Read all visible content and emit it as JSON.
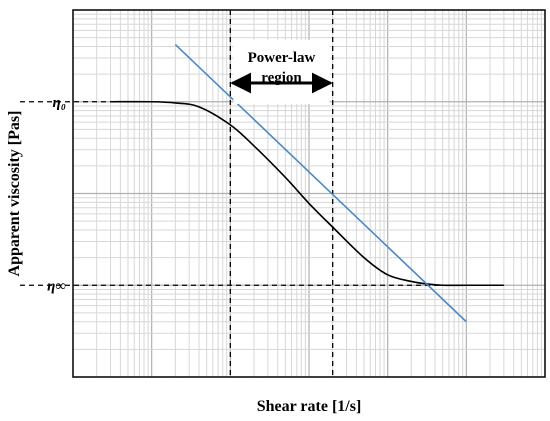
{
  "chart_data": {
    "type": "line",
    "title": "",
    "xlabel": "Shear rate [1/s]",
    "ylabel": "Apparent viscosity [Pas]",
    "x_scale": "log",
    "y_scale": "log",
    "xlim": [
      0.01,
      10000
    ],
    "ylim": [
      0.01,
      100
    ],
    "grid": true,
    "y_tick_labels": [
      {
        "label": "η₀",
        "value": 10
      },
      {
        "label": "η∞",
        "value": 0.1
      }
    ],
    "series": [
      {
        "name": "",
        "color": "#000000",
        "x": [
          0.03,
          0.1,
          0.2,
          0.4,
          1,
          2,
          5,
          10,
          20,
          50,
          100,
          200,
          300,
          500,
          1000,
          2000,
          3000
        ],
        "y": [
          10,
          10,
          9.7,
          8.8,
          5.6,
          3.3,
          1.5,
          0.78,
          0.43,
          0.2,
          0.13,
          0.11,
          0.104,
          0.1,
          0.1,
          0.1,
          0.1
        ]
      },
      {
        "name": "",
        "color": "#4a87c8",
        "x": [
          0.2,
          1000
        ],
        "y": [
          42,
          0.04
        ]
      }
    ],
    "reference_lines": [
      {
        "orientation": "vertical",
        "x": 1,
        "y_from": 0.01,
        "y_to": 100,
        "style": "dashed"
      },
      {
        "orientation": "vertical",
        "x": 20,
        "y_from": 0.01,
        "y_to": 100,
        "style": "dashed"
      },
      {
        "orientation": "horizontal",
        "y": 10,
        "x_from": 0.01,
        "x_to": 0.03,
        "style": "dashed"
      },
      {
        "orientation": "horizontal",
        "y": 0.1,
        "x_from": 0.01,
        "x_to": 1000,
        "style": "dashed"
      }
    ],
    "annotations": [
      {
        "text": [
          "Power-law",
          "region"
        ],
        "arrow": "double",
        "x_from": 1,
        "x_to": 20,
        "y": 16
      }
    ]
  }
}
